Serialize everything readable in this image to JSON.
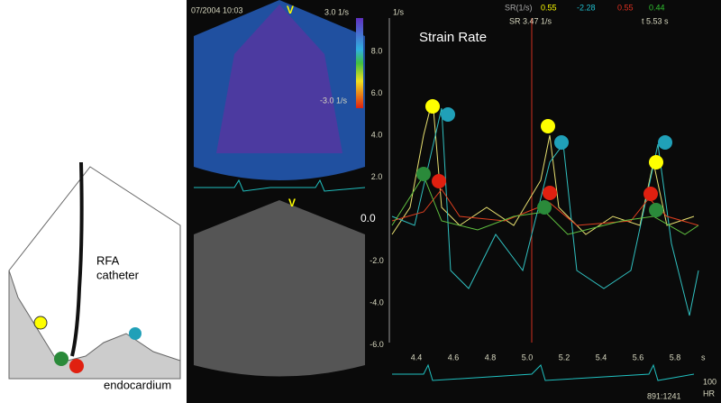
{
  "schematic": {
    "catheter_label": [
      "RFA",
      "catheter"
    ],
    "endocardium_label": "endocardium"
  },
  "doppler": {
    "header": "07/2004 10:03",
    "mode": "V",
    "scale_top": "3.0 1/s",
    "scale_bottom": "-3.0 1/s"
  },
  "bmode": {
    "mode": "V"
  },
  "plot": {
    "title": "Strain Rate",
    "unit": "1/s",
    "readout": {
      "label": "SR(1/s)",
      "yellow": "0.55",
      "cyan": "-2.28",
      "red": "0.55",
      "green": "0.44",
      "sr": "SR 3.47 1/s",
      "t": "t 5.53 s"
    },
    "yticks": [
      "8.0",
      "6.0",
      "4.0",
      "2.0",
      "0.0",
      "-2.0",
      "-4.0",
      "-6.0"
    ],
    "xticks": [
      "4.4",
      "4.6",
      "4.8",
      "5.0",
      "5.2",
      "5.4",
      "5.6",
      "5.8"
    ],
    "x_unit": "s"
  },
  "footer": {
    "frame": "891:1241",
    "hr_value": "100",
    "hr": "HR"
  }
}
